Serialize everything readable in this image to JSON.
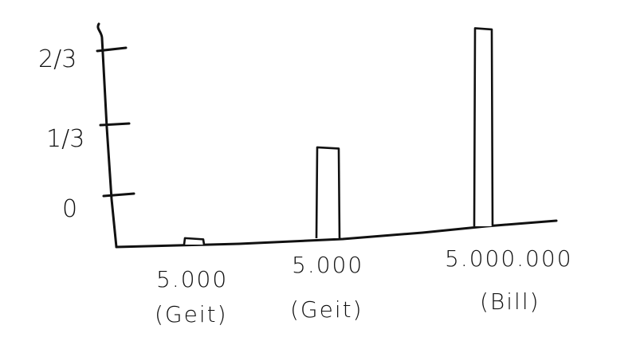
{
  "chart_data": {
    "type": "bar",
    "categories": [
      {
        "line1": "5.000",
        "line2": "(Geit)"
      },
      {
        "line1": "5.000",
        "line2": "(Geit)"
      },
      {
        "line1": "5.000.000",
        "line2": "(Bill)"
      }
    ],
    "values": [
      0.02,
      0.34,
      0.76
    ],
    "yticks": [
      {
        "value": 0,
        "label": "0"
      },
      {
        "value": 0.3333,
        "label": "1/3"
      },
      {
        "value": 0.6667,
        "label": "2/3"
      }
    ],
    "ylim": [
      0,
      0.78
    ],
    "title": "",
    "xlabel": "",
    "ylabel": "",
    "grid": false,
    "style": "hand-drawn"
  }
}
